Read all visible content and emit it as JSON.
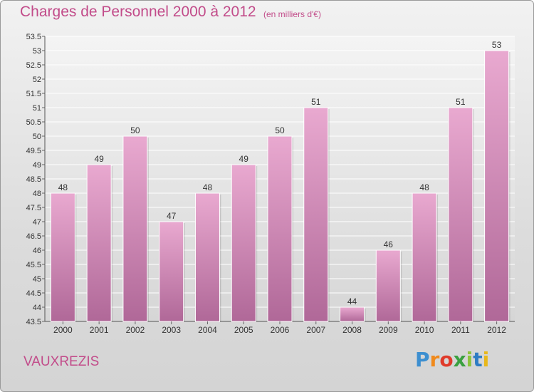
{
  "header": {
    "title": "Charges de Personnel 2000 à 2012",
    "subtitle": "(en milliers d'€)"
  },
  "footer": {
    "town": "VAUXREZIS",
    "logo_letters": [
      "P",
      "r",
      "o",
      "x",
      "i",
      "t",
      "i"
    ],
    "logo_colors": [
      "#3d8fd0",
      "#f08a1c",
      "#e03a2a",
      "#3aa040",
      "#8cc43c",
      "#2e7cc4",
      "#e8b81c"
    ]
  },
  "colors": {
    "bar_top": "#e9a9d0",
    "bar_bottom": "#b06898",
    "text_accent": "#c24c8a",
    "axis_text": "#333333"
  },
  "chart_data": {
    "type": "bar",
    "title": "Charges de Personnel 2000 à 2012",
    "subtitle": "(en milliers d'€)",
    "xlabel": "",
    "ylabel": "",
    "categories": [
      "2000",
      "2001",
      "2002",
      "2003",
      "2004",
      "2005",
      "2006",
      "2007",
      "2008",
      "2009",
      "2010",
      "2011",
      "2012"
    ],
    "values": [
      48,
      49,
      50,
      47,
      48,
      49,
      50,
      51,
      44,
      46,
      48,
      51,
      53
    ],
    "data_labels": [
      "48",
      "49",
      "50",
      "47",
      "48",
      "49",
      "50",
      "51",
      "44",
      "46",
      "48",
      "51",
      "53"
    ],
    "ylim": [
      43.5,
      53.5
    ],
    "yticks": [
      "43.5",
      "44",
      "44.5",
      "45",
      "45.5",
      "46",
      "46.5",
      "47",
      "47.5",
      "48",
      "48.5",
      "49",
      "49.5",
      "50",
      "50.5",
      "51",
      "51.5",
      "52",
      "52.5",
      "53",
      "53.5"
    ],
    "grid": true,
    "legend": "none"
  }
}
